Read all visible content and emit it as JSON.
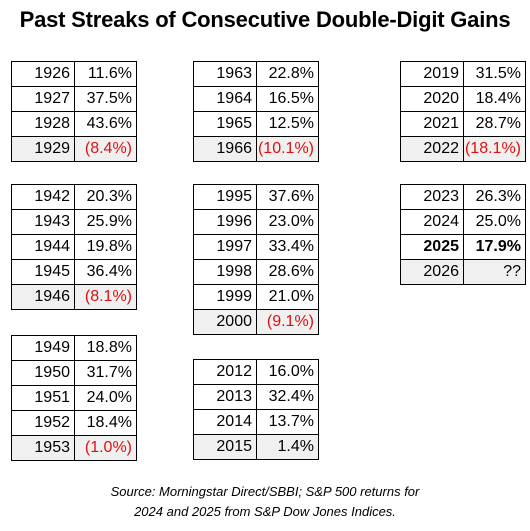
{
  "title": "Past Streaks of Consecutive Double-Digit Gains",
  "chart_data": {
    "type": "table",
    "title": "Past Streaks of Consecutive Double-Digit Gains",
    "tables": [
      {
        "rows": [
          {
            "year": "1926",
            "return": "11.6%",
            "negative": false
          },
          {
            "year": "1927",
            "return": "37.5%",
            "negative": false
          },
          {
            "year": "1928",
            "return": "43.6%",
            "negative": false
          },
          {
            "year": "1929",
            "return": "(8.4%)",
            "negative": true
          }
        ]
      },
      {
        "rows": [
          {
            "year": "1963",
            "return": "22.8%",
            "negative": false
          },
          {
            "year": "1964",
            "return": "16.5%",
            "negative": false
          },
          {
            "year": "1965",
            "return": "12.5%",
            "negative": false
          },
          {
            "year": "1966",
            "return": "(10.1%)",
            "negative": true
          }
        ]
      },
      {
        "rows": [
          {
            "year": "2019",
            "return": "31.5%",
            "negative": false
          },
          {
            "year": "2020",
            "return": "18.4%",
            "negative": false
          },
          {
            "year": "2021",
            "return": "28.7%",
            "negative": false
          },
          {
            "year": "2022",
            "return": "(18.1%)",
            "negative": true
          }
        ]
      },
      {
        "rows": [
          {
            "year": "1942",
            "return": "20.3%",
            "negative": false
          },
          {
            "year": "1943",
            "return": "25.9%",
            "negative": false
          },
          {
            "year": "1944",
            "return": "19.8%",
            "negative": false
          },
          {
            "year": "1945",
            "return": "36.4%",
            "negative": false
          },
          {
            "year": "1946",
            "return": "(8.1%)",
            "negative": true
          }
        ]
      },
      {
        "rows": [
          {
            "year": "1995",
            "return": "37.6%",
            "negative": false
          },
          {
            "year": "1996",
            "return": "23.0%",
            "negative": false
          },
          {
            "year": "1997",
            "return": "33.4%",
            "negative": false
          },
          {
            "year": "1998",
            "return": "28.6%",
            "negative": false
          },
          {
            "year": "1999",
            "return": "21.0%",
            "negative": false
          },
          {
            "year": "2000",
            "return": "(9.1%)",
            "negative": true
          }
        ]
      },
      {
        "rows": [
          {
            "year": "2023",
            "return": "26.3%",
            "negative": false
          },
          {
            "year": "2024",
            "return": "25.0%",
            "negative": false
          },
          {
            "year": "2025",
            "return": "17.9%",
            "negative": false,
            "bold": true
          },
          {
            "year": "2026",
            "return": "??",
            "negative": false,
            "shaded": true
          }
        ]
      },
      {
        "rows": [
          {
            "year": "1949",
            "return": "18.8%",
            "negative": false
          },
          {
            "year": "1950",
            "return": "31.7%",
            "negative": false
          },
          {
            "year": "1951",
            "return": "24.0%",
            "negative": false
          },
          {
            "year": "1952",
            "return": "18.4%",
            "negative": false
          },
          {
            "year": "1953",
            "return": "(1.0%)",
            "negative": true
          }
        ]
      },
      {
        "rows": [
          {
            "year": "2012",
            "return": "16.0%",
            "negative": false
          },
          {
            "year": "2013",
            "return": "32.4%",
            "negative": false
          },
          {
            "year": "2014",
            "return": "13.7%",
            "negative": false
          },
          {
            "year": "2015",
            "return": "1.4%",
            "negative": false,
            "shaded": true
          }
        ]
      }
    ]
  },
  "source": {
    "line1": "Source: Morningstar Direct/SBBI; S&P 500 returns for",
    "line2": "2024 and 2025 from S&P Dow Jones Indices."
  },
  "colors": {
    "negative_text": "#e01010",
    "shaded_row": "#f0f0f0",
    "border": "#000000"
  }
}
